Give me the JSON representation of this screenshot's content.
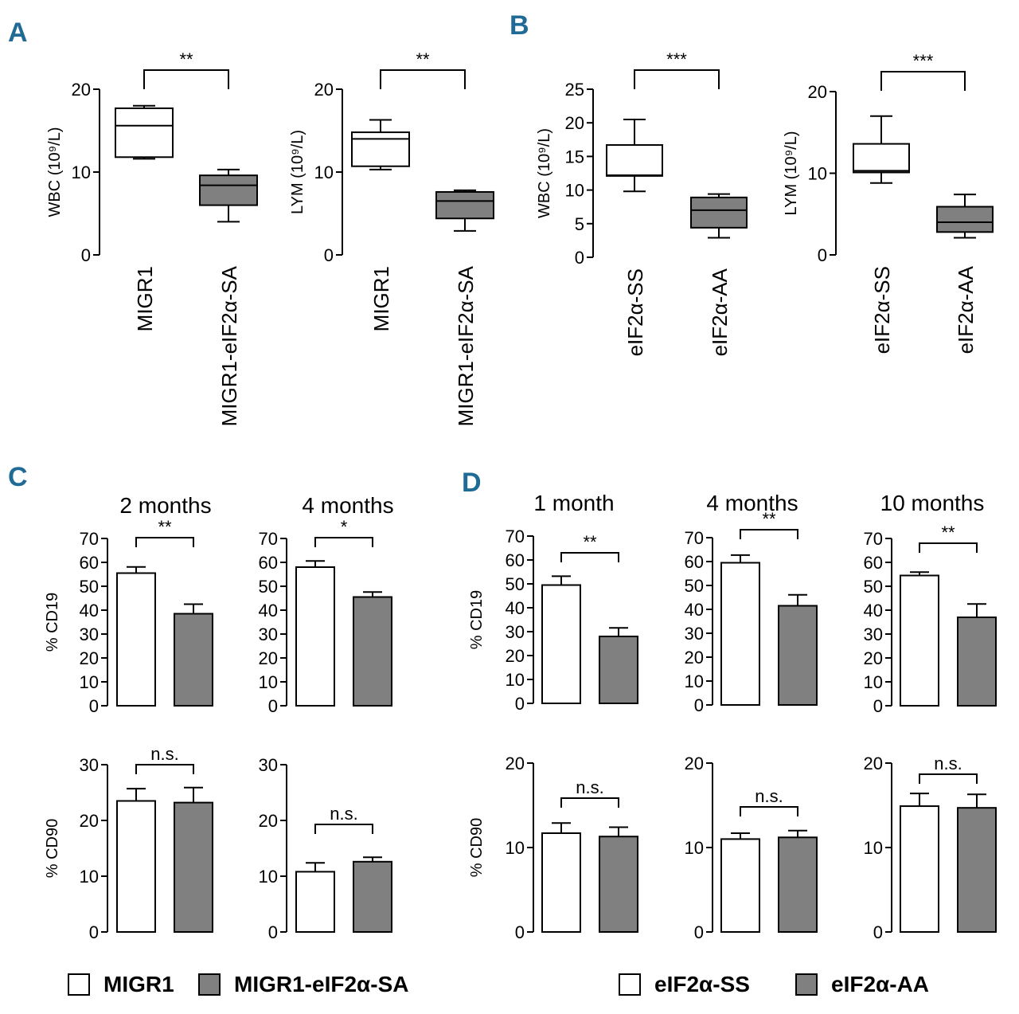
{
  "colors": {
    "panel_label": "#1f6b96",
    "box_fill_a": "#ffffff",
    "box_fill_b": "#808080",
    "line": "#000000"
  },
  "panel_labels": {
    "A": "A",
    "B": "B",
    "C": "C",
    "D": "D"
  },
  "legends": {
    "left": [
      {
        "label": "MIGR1",
        "color": "#ffffff"
      },
      {
        "label": "MIGR1-eIF2α-SA",
        "color": "#808080"
      }
    ],
    "right": [
      {
        "label": "eIF2α-SS",
        "color": "#ffffff"
      },
      {
        "label": "eIF2α-AA",
        "color": "#808080"
      }
    ]
  },
  "chart_data": [
    {
      "id": "A1",
      "panel": "A",
      "type": "box",
      "ylabel": "WBC (10⁹/L)",
      "ylim": [
        0,
        20
      ],
      "yticks": [
        0,
        10,
        20
      ],
      "categories": [
        "MIGR1",
        "MIGR1-eIF2α-SA"
      ],
      "boxes": [
        {
          "min": 11.6,
          "q1": 11.8,
          "median": 15.6,
          "q3": 17.7,
          "max": 18.0
        },
        {
          "min": 4.0,
          "q1": 6.0,
          "median": 8.4,
          "q3": 9.6,
          "max": 10.3
        }
      ],
      "significance": "**"
    },
    {
      "id": "A2",
      "panel": "A",
      "type": "box",
      "ylabel": "LYM (10⁹/L)",
      "ylim": [
        0,
        20
      ],
      "yticks": [
        0,
        10,
        20
      ],
      "categories": [
        "MIGR1",
        "MIGR1-eIF2α-SA"
      ],
      "boxes": [
        {
          "min": 10.3,
          "q1": 10.7,
          "median": 14.0,
          "q3": 14.8,
          "max": 16.3
        },
        {
          "min": 2.9,
          "q1": 4.4,
          "median": 6.5,
          "q3": 7.6,
          "max": 7.8
        }
      ],
      "significance": "**"
    },
    {
      "id": "B1",
      "panel": "B",
      "type": "box",
      "ylabel": "WBC (10⁹/L)",
      "ylim": [
        0,
        25
      ],
      "yticks": [
        0,
        5,
        10,
        15,
        20,
        25
      ],
      "categories": [
        "eIF2α-SS",
        "eIF2α-AA"
      ],
      "boxes": [
        {
          "min": 9.8,
          "q1": 12.1,
          "median": 12.2,
          "q3": 16.7,
          "max": 20.5
        },
        {
          "min": 2.9,
          "q1": 4.4,
          "median": 7.0,
          "q3": 8.9,
          "max": 9.4
        }
      ],
      "significance": "***"
    },
    {
      "id": "B2",
      "panel": "B",
      "type": "box",
      "ylabel": "LYM (10⁹/L)",
      "ylim": [
        0,
        20
      ],
      "yticks": [
        0,
        10,
        20
      ],
      "categories": [
        "eIF2α-SS",
        "eIF2α-AA"
      ],
      "boxes": [
        {
          "min": 8.8,
          "q1": 10.1,
          "median": 10.3,
          "q3": 13.6,
          "max": 17.0
        },
        {
          "min": 2.1,
          "q1": 2.8,
          "median": 4.0,
          "q3": 5.9,
          "max": 7.4
        }
      ],
      "significance": "***"
    },
    {
      "id": "C1",
      "panel": "C",
      "type": "bar",
      "title": "2 months",
      "ylabel": "% CD19",
      "ylim": [
        0,
        70
      ],
      "yticks": [
        0,
        10,
        20,
        30,
        40,
        50,
        60,
        70
      ],
      "series": [
        {
          "name": "MIGR1",
          "value": 55.5,
          "error": 2.6
        },
        {
          "name": "MIGR1-eIF2α-SA",
          "value": 38.5,
          "error": 4.0
        }
      ],
      "significance": "**"
    },
    {
      "id": "C2",
      "panel": "C",
      "type": "bar",
      "title": "4 months",
      "ylabel": "",
      "ylim": [
        0,
        70
      ],
      "yticks": [
        0,
        10,
        20,
        30,
        40,
        50,
        60,
        70
      ],
      "series": [
        {
          "name": "MIGR1",
          "value": 58.0,
          "error": 2.6
        },
        {
          "name": "MIGR1-eIF2α-SA",
          "value": 45.5,
          "error": 2.1
        }
      ],
      "significance": "*"
    },
    {
      "id": "C3",
      "panel": "C",
      "type": "bar",
      "ylabel": "% CD90",
      "ylim": [
        0,
        30
      ],
      "yticks": [
        0,
        10,
        20,
        30
      ],
      "series": [
        {
          "name": "MIGR1",
          "value": 23.5,
          "error": 2.2
        },
        {
          "name": "MIGR1-eIF2α-SA",
          "value": 23.2,
          "error": 2.7
        }
      ],
      "significance": "n.s."
    },
    {
      "id": "C4",
      "panel": "C",
      "type": "bar",
      "ylabel": "",
      "ylim": [
        0,
        30
      ],
      "yticks": [
        0,
        10,
        20,
        30
      ],
      "series": [
        {
          "name": "MIGR1",
          "value": 10.8,
          "error": 1.6
        },
        {
          "name": "MIGR1-eIF2α-SA",
          "value": 12.6,
          "error": 0.8
        }
      ],
      "significance": "n.s."
    },
    {
      "id": "D1",
      "panel": "D",
      "type": "bar",
      "title": "1 month",
      "ylabel": "% CD19",
      "ylim": [
        0,
        70
      ],
      "yticks": [
        0,
        10,
        20,
        30,
        40,
        50,
        60,
        70
      ],
      "series": [
        {
          "name": "eIF2α-SS",
          "value": 49.5,
          "error": 3.7
        },
        {
          "name": "eIF2α-AA",
          "value": 28.0,
          "error": 3.6
        }
      ],
      "significance": "**"
    },
    {
      "id": "D2",
      "panel": "D",
      "type": "bar",
      "title": "4 months",
      "ylabel": "",
      "ylim": [
        0,
        70
      ],
      "yticks": [
        0,
        10,
        20,
        30,
        40,
        50,
        60,
        70
      ],
      "series": [
        {
          "name": "eIF2α-SS",
          "value": 59.5,
          "error": 3.2
        },
        {
          "name": "eIF2α-AA",
          "value": 41.5,
          "error": 4.6
        }
      ],
      "significance": "**"
    },
    {
      "id": "D3",
      "panel": "D",
      "type": "bar",
      "title": "10 months",
      "ylabel": "",
      "ylim": [
        0,
        70
      ],
      "yticks": [
        0,
        10,
        20,
        30,
        40,
        50,
        60,
        70
      ],
      "series": [
        {
          "name": "eIF2α-SS",
          "value": 54.5,
          "error": 1.4
        },
        {
          "name": "eIF2α-AA",
          "value": 37.0,
          "error": 5.6
        }
      ],
      "significance": "**"
    },
    {
      "id": "D4",
      "panel": "D",
      "type": "bar",
      "ylabel": "% CD90",
      "ylim": [
        0,
        20
      ],
      "yticks": [
        0,
        10,
        20
      ],
      "series": [
        {
          "name": "eIF2α-SS",
          "value": 11.7,
          "error": 1.2
        },
        {
          "name": "eIF2α-AA",
          "value": 11.3,
          "error": 1.1
        }
      ],
      "significance": "n.s."
    },
    {
      "id": "D5",
      "panel": "D",
      "type": "bar",
      "ylabel": "",
      "ylim": [
        0,
        20
      ],
      "yticks": [
        0,
        10,
        20
      ],
      "series": [
        {
          "name": "eIF2α-SS",
          "value": 11.0,
          "error": 0.7
        },
        {
          "name": "eIF2α-AA",
          "value": 11.2,
          "error": 0.8
        }
      ],
      "significance": "n.s."
    },
    {
      "id": "D6",
      "panel": "D",
      "type": "bar",
      "ylabel": "",
      "ylim": [
        0,
        20
      ],
      "yticks": [
        0,
        10,
        20
      ],
      "series": [
        {
          "name": "eIF2α-SS",
          "value": 14.9,
          "error": 1.5
        },
        {
          "name": "eIF2α-AA",
          "value": 14.7,
          "error": 1.6
        }
      ],
      "significance": "n.s."
    }
  ]
}
